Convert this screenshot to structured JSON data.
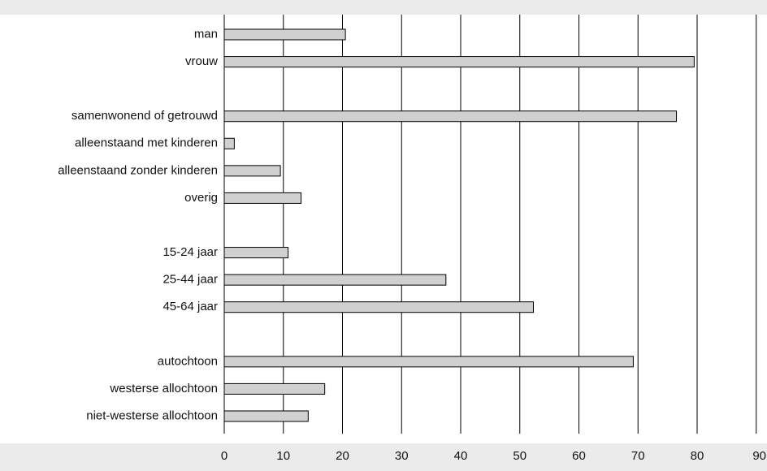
{
  "chart_data": {
    "type": "bar",
    "orientation": "horizontal",
    "categories": [
      "man",
      "vrouw",
      "",
      "samenwonend of getrouwd",
      "alleenstaand met kinderen",
      "alleenstaand zonder kinderen",
      "overig",
      "",
      "15-24 jaar",
      "25-44 jaar",
      "45-64 jaar",
      "",
      "autochtoon",
      "westerse allochtoon",
      "niet-westerse allochtoon"
    ],
    "values": [
      20.5,
      79.5,
      null,
      76.5,
      1.7,
      9.5,
      13,
      null,
      10.8,
      37.5,
      52.3,
      null,
      69.2,
      17,
      14.2
    ],
    "xlim": [
      0,
      90
    ],
    "xticks": [
      0,
      10,
      20,
      30,
      40,
      50,
      60,
      70,
      80,
      90
    ],
    "grid": "vertical",
    "legend": "none",
    "title": "",
    "xlabel": "",
    "ylabel": ""
  },
  "colors": {
    "bar_fill": "#d0d0d0",
    "bar_stroke": "#000000",
    "page_bg": "#ebebeb",
    "plot_bg": "#ffffff"
  }
}
